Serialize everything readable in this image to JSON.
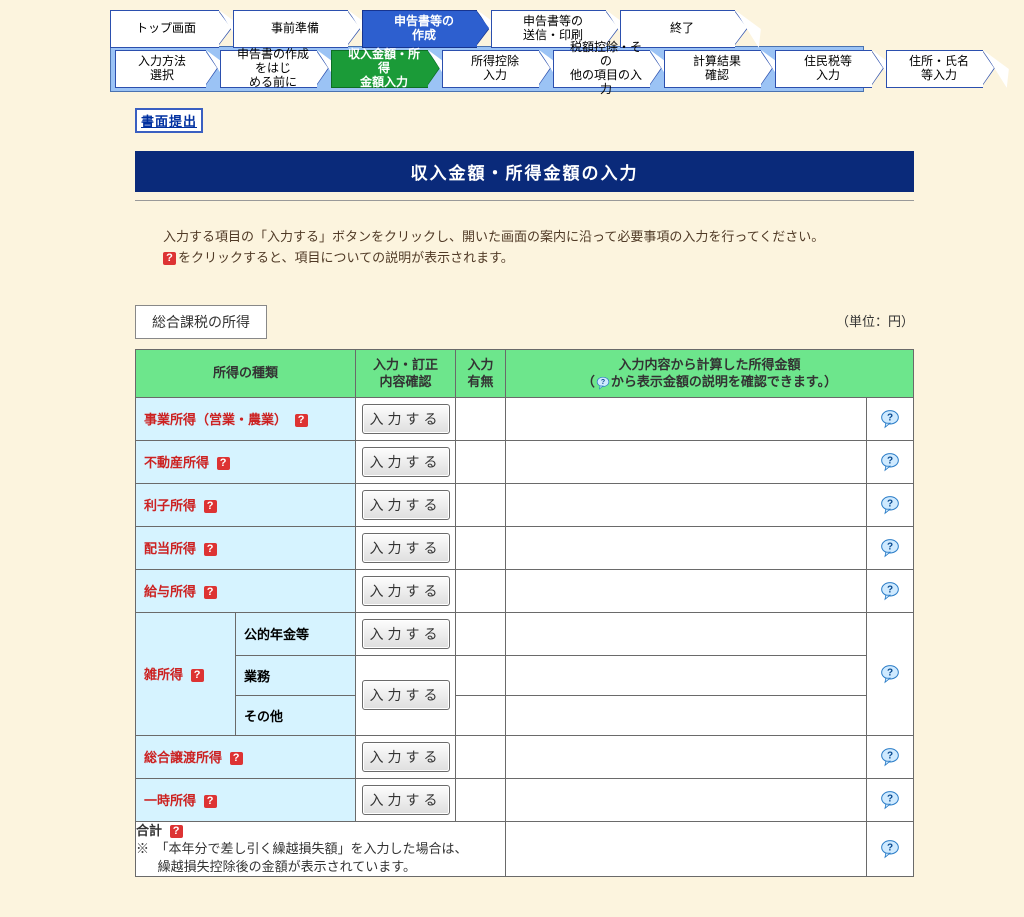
{
  "colors": {
    "page_bg": "#fcf4de",
    "nav_blue": "#2d5fcf",
    "nav_green": "#1b9b38",
    "header_green": "#6de68c",
    "row_blue": "#d6f3ff",
    "title_bar": "#0a2a7a",
    "red": "#c22"
  },
  "top_nav": [
    {
      "label": "トップ画面"
    },
    {
      "label": "事前準備"
    },
    {
      "label": "申告書等の\n作成",
      "active": "blue"
    },
    {
      "label": "申告書等の\n送信・印刷"
    },
    {
      "label": "終了"
    }
  ],
  "sub_nav": [
    {
      "label": "入力方法\n選択"
    },
    {
      "label": "申告書の作成をはじ\nめる前に"
    },
    {
      "label": "収入金額・所得\n金額入力",
      "active": "green"
    },
    {
      "label": "所得控除\n入力"
    },
    {
      "label": "税額控除・その\n他の項目の入力"
    },
    {
      "label": "計算結果\n確認"
    },
    {
      "label": "住民税等\n入力"
    },
    {
      "label": "住所・氏名\n等入力"
    }
  ],
  "screen_submit": "書面提出",
  "page_title": "収入金額・所得金額の入力",
  "intro_line1": "入力する項目の「入力する」ボタンをクリックし、開いた画面の案内に沿って必要事項の入力を行ってください。",
  "intro_line2": "をクリックすると、項目についての説明が表示されます。",
  "section_label": "総合課税の所得",
  "unit_label": "（単位：円）",
  "table": {
    "head": {
      "type": "所得の種類",
      "input": "入力・訂正\n内容確認",
      "has": "入力\n有無",
      "amount_line1": "入力内容から計算した所得金額",
      "amount_line2_pre": "（",
      "amount_line2_post": "から表示金額の説明を確認できます。）"
    },
    "rows": [
      {
        "kind": "single",
        "type": "事業所得（営業・農業）",
        "btn": "入力する"
      },
      {
        "kind": "single",
        "type": "不動産所得",
        "btn": "入力する"
      },
      {
        "kind": "single",
        "type": "利子所得",
        "btn": "入力する"
      },
      {
        "kind": "single",
        "type": "配当所得",
        "btn": "入力する"
      },
      {
        "kind": "single",
        "type": "給与所得",
        "btn": "入力する"
      },
      {
        "kind": "misc",
        "group": "雑所得",
        "sub1": "公的年金等",
        "sub2": "業務",
        "sub3": "その他",
        "btn1": "入力する",
        "btn2": "入力する"
      },
      {
        "kind": "single",
        "type": "総合譲渡所得",
        "btn": "入力する"
      },
      {
        "kind": "single",
        "type": "一時所得",
        "btn": "入力する"
      }
    ],
    "total": {
      "label": "合計",
      "note1": "※　「本年分で差し引く繰越損失額」を入力した場合は、",
      "note2": "繰越損失控除後の金額が表示されています。"
    }
  }
}
